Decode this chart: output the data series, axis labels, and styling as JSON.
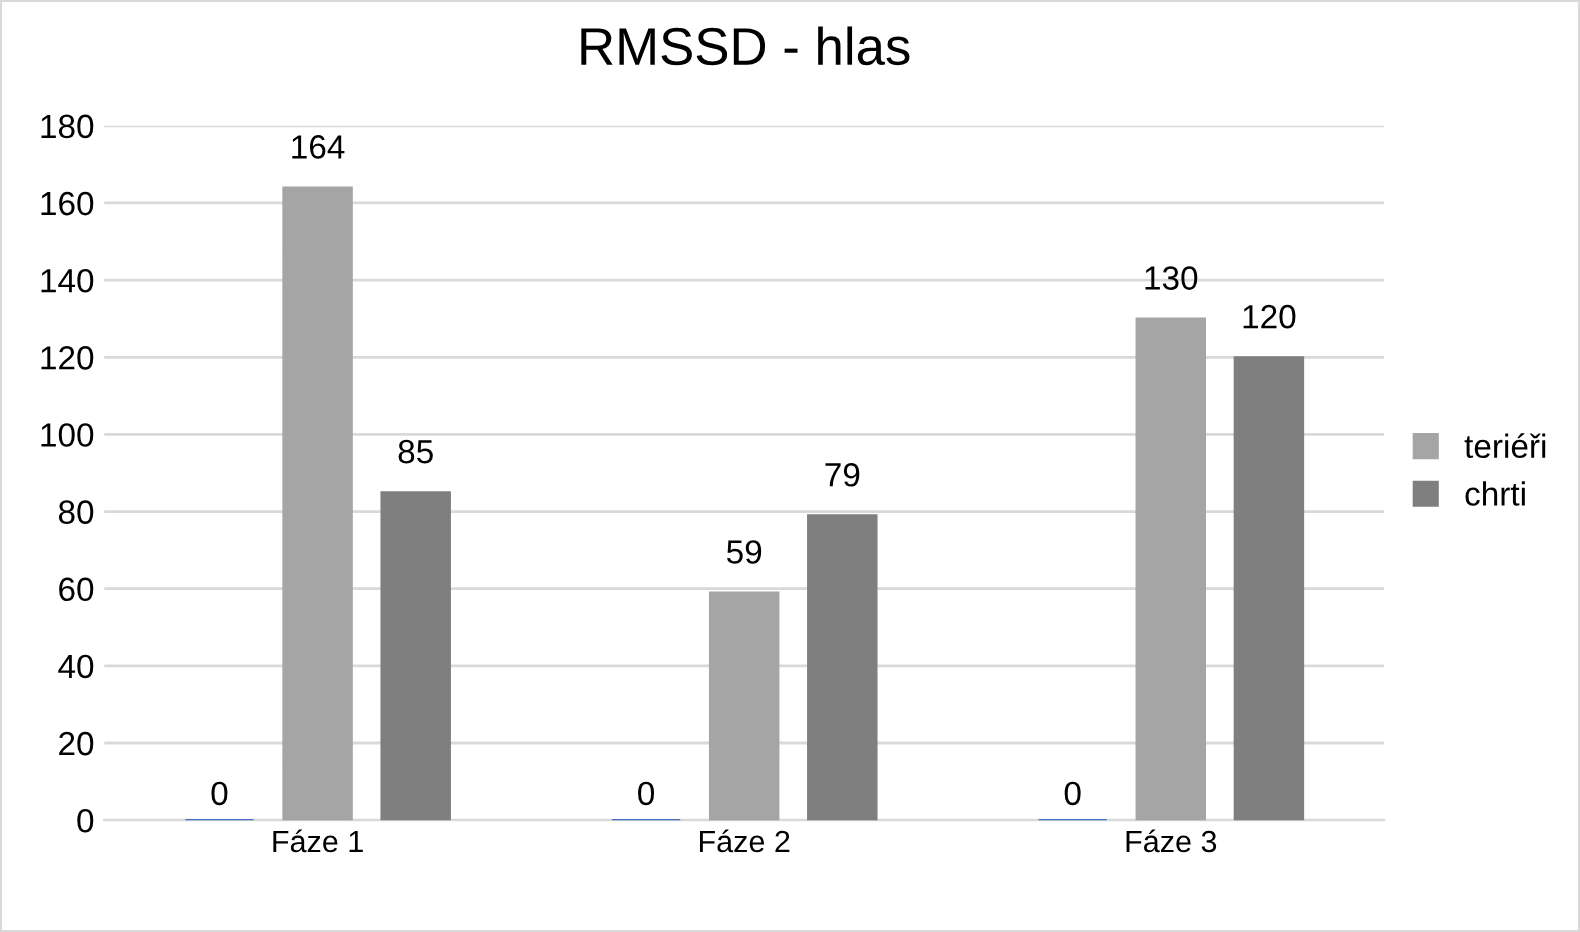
{
  "chart_data": {
    "type": "bar",
    "title": "RMSSD - hlas",
    "categories": [
      "Fáze 1",
      "Fáze 2",
      "Fáze 3"
    ],
    "series": [
      {
        "color": "#4472c4",
        "values": [
          0,
          0,
          0
        ]
      },
      {
        "name": "teriéři",
        "color": "#a5a5a5",
        "values": [
          164,
          59,
          130
        ]
      },
      {
        "name": "chrti",
        "color": "#7f7f7f",
        "values": [
          85,
          79,
          120
        ]
      }
    ],
    "ylim": [
      0,
      180
    ],
    "yticks": [
      0,
      20,
      40,
      60,
      80,
      100,
      120,
      140,
      160,
      180
    ],
    "grid": "y",
    "legend": "right",
    "data_labels": true
  }
}
